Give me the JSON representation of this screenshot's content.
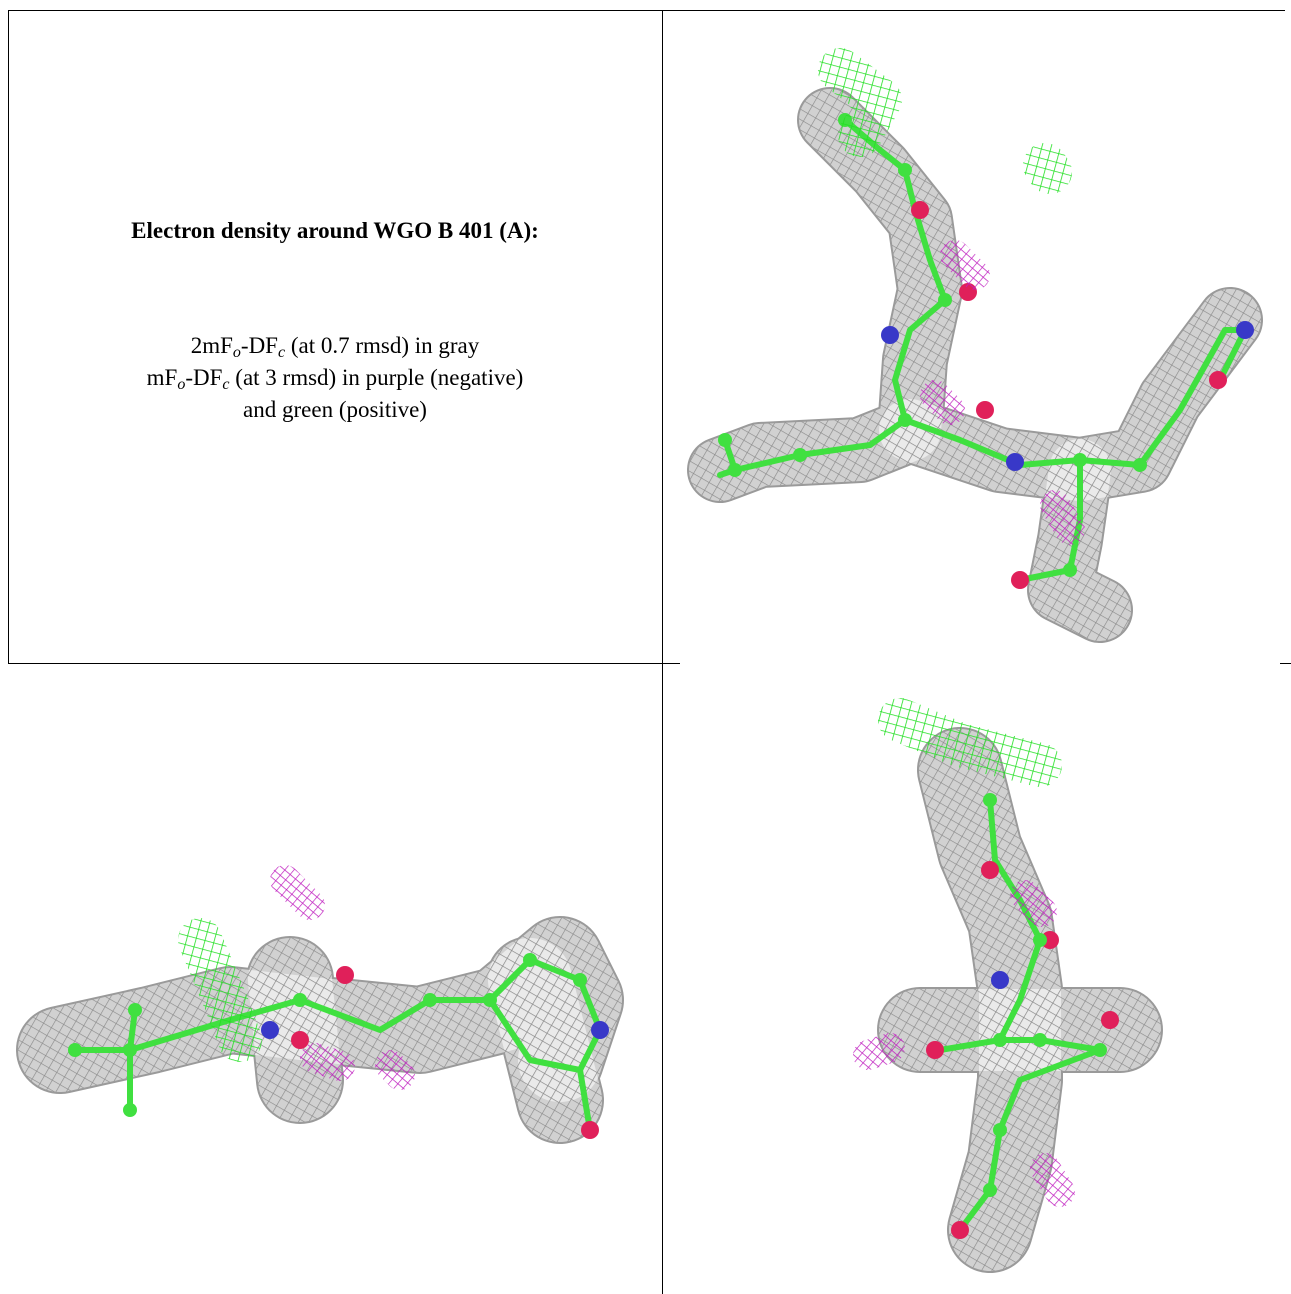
{
  "caption": {
    "title": "Electron density around WGO B 401 (A):",
    "lines": [
      [
        "2mF",
        "o",
        "-DF",
        "c",
        " (at 0.7 rmsd) in gray"
      ],
      [
        "mF",
        "o",
        "-DF",
        "c",
        " (at 3 rmsd) in purple (negative)"
      ],
      [
        "and green (positive)"
      ]
    ]
  }
}
